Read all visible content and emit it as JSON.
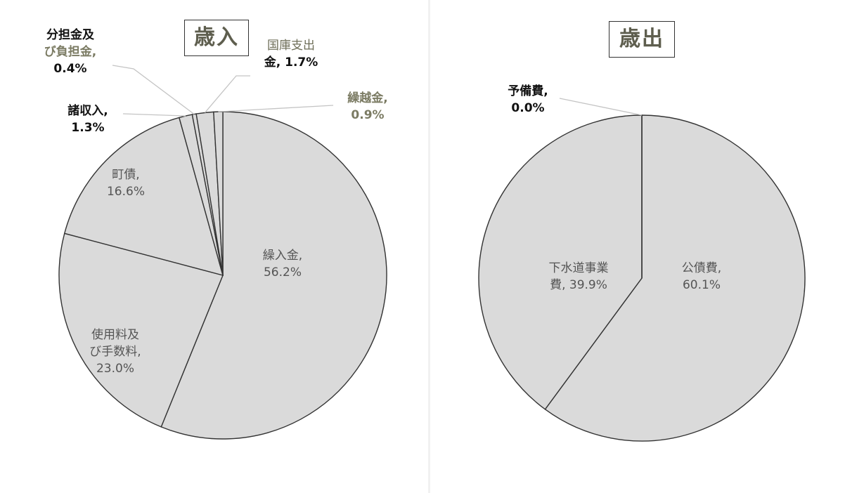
{
  "chart_data": [
    {
      "type": "pie",
      "title": "歳入",
      "slices": [
        {
          "label_lines": [
            "繰入金,",
            "56.2%"
          ],
          "value": 56.2
        },
        {
          "label_lines": [
            "使用料及",
            "び手数料,",
            "23.0%"
          ],
          "value": 23.0
        },
        {
          "label_lines": [
            "町債,",
            "16.6%"
          ],
          "value": 16.6
        },
        {
          "label_lines": [
            "諸収入,",
            "1.3%"
          ],
          "value": 1.3
        },
        {
          "label_lines": [
            "分担金及",
            "び負担金,",
            "0.4%"
          ],
          "value": 0.4
        },
        {
          "label_lines": [
            "国庫支出",
            "金, 1.7%"
          ],
          "value": 1.7
        },
        {
          "label_lines": [
            "繰越金,",
            "0.9%"
          ],
          "value": 0.9
        }
      ],
      "colors": {
        "fill": "#dadada",
        "stroke": "#333333",
        "leader": "#c4c4c4"
      }
    },
    {
      "type": "pie",
      "title": "歳出",
      "slices": [
        {
          "label_lines": [
            "公債費,",
            "60.1%"
          ],
          "value": 60.1
        },
        {
          "label_lines": [
            "下水道事業",
            "費, 39.9%"
          ],
          "value": 39.9
        },
        {
          "label_lines": [
            "予備費,",
            "0.0%"
          ],
          "value": 0.0
        }
      ],
      "colors": {
        "fill": "#dadada",
        "stroke": "#333333",
        "leader": "#c4c4c4"
      }
    }
  ]
}
